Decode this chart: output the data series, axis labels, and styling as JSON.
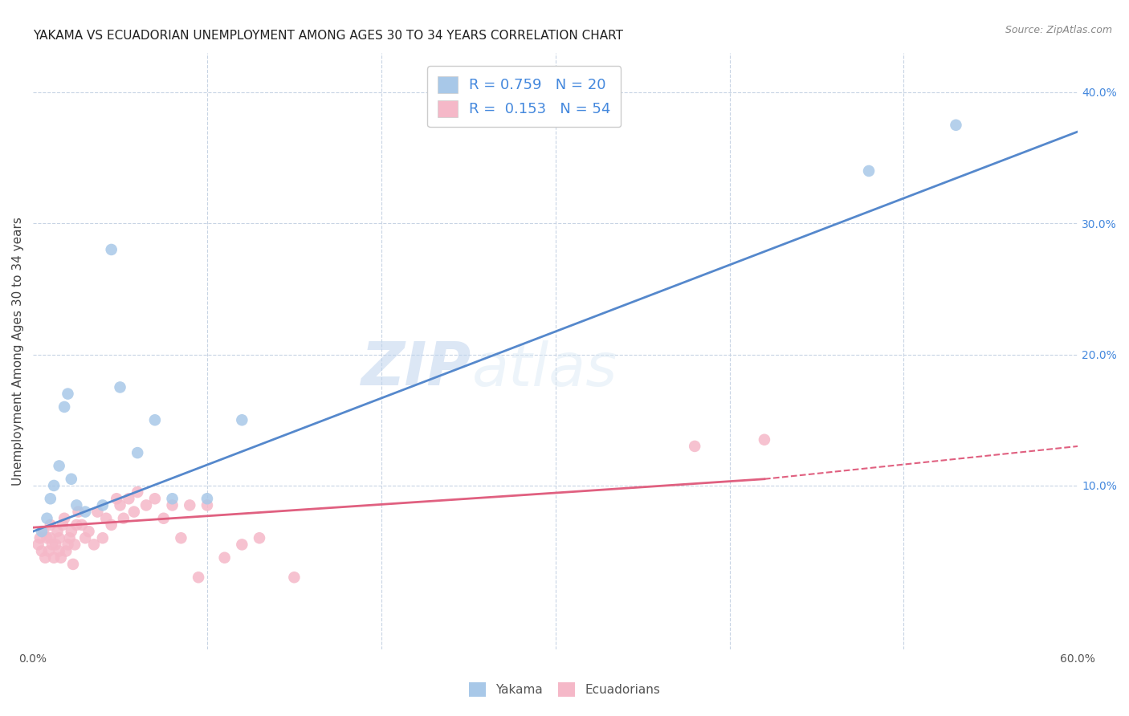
{
  "title": "YAKAMA VS ECUADORIAN UNEMPLOYMENT AMONG AGES 30 TO 34 YEARS CORRELATION CHART",
  "source": "Source: ZipAtlas.com",
  "ylabel": "Unemployment Among Ages 30 to 34 years",
  "xlim": [
    0.0,
    0.6
  ],
  "ylim": [
    -0.025,
    0.43
  ],
  "xticks": [
    0.0,
    0.6
  ],
  "xticklabels": [
    "0.0%",
    "60.0%"
  ],
  "yticks_right": [
    0.1,
    0.2,
    0.3,
    0.4
  ],
  "yticklabels_right": [
    "10.0%",
    "20.0%",
    "30.0%",
    "40.0%"
  ],
  "yakama_color": "#a8c8e8",
  "ecuadorian_color": "#f5b8c8",
  "yakama_line_color": "#5588cc",
  "ecuadorian_line_color": "#e06080",
  "yakama_R": 0.759,
  "yakama_N": 20,
  "ecuadorian_R": 0.153,
  "ecuadorian_N": 54,
  "legend_text_color": "#4488dd",
  "watermark": "ZIPatlas",
  "background_color": "#ffffff",
  "grid_color": "#c8d4e4",
  "yakama_x": [
    0.005,
    0.008,
    0.01,
    0.012,
    0.015,
    0.018,
    0.02,
    0.022,
    0.025,
    0.03,
    0.04,
    0.045,
    0.05,
    0.06,
    0.07,
    0.08,
    0.1,
    0.12,
    0.48,
    0.53
  ],
  "yakama_y": [
    0.065,
    0.075,
    0.09,
    0.1,
    0.115,
    0.16,
    0.17,
    0.105,
    0.085,
    0.08,
    0.085,
    0.28,
    0.175,
    0.125,
    0.15,
    0.09,
    0.09,
    0.15,
    0.34,
    0.375
  ],
  "ecuadorian_x": [
    0.003,
    0.004,
    0.005,
    0.006,
    0.007,
    0.008,
    0.009,
    0.01,
    0.01,
    0.011,
    0.012,
    0.013,
    0.014,
    0.015,
    0.015,
    0.016,
    0.017,
    0.018,
    0.019,
    0.02,
    0.021,
    0.022,
    0.023,
    0.024,
    0.025,
    0.026,
    0.028,
    0.03,
    0.032,
    0.035,
    0.037,
    0.04,
    0.042,
    0.045,
    0.048,
    0.05,
    0.052,
    0.055,
    0.058,
    0.06,
    0.065,
    0.07,
    0.075,
    0.08,
    0.085,
    0.09,
    0.095,
    0.1,
    0.11,
    0.12,
    0.13,
    0.15,
    0.38,
    0.42
  ],
  "ecuadorian_y": [
    0.055,
    0.06,
    0.05,
    0.065,
    0.045,
    0.06,
    0.05,
    0.06,
    0.07,
    0.055,
    0.045,
    0.055,
    0.065,
    0.05,
    0.06,
    0.045,
    0.07,
    0.075,
    0.05,
    0.055,
    0.06,
    0.065,
    0.04,
    0.055,
    0.07,
    0.08,
    0.07,
    0.06,
    0.065,
    0.055,
    0.08,
    0.06,
    0.075,
    0.07,
    0.09,
    0.085,
    0.075,
    0.09,
    0.08,
    0.095,
    0.085,
    0.09,
    0.075,
    0.085,
    0.06,
    0.085,
    0.03,
    0.085,
    0.045,
    0.055,
    0.06,
    0.03,
    0.13,
    0.135
  ],
  "yakama_line": [
    0.0,
    0.6,
    0.065,
    0.37
  ],
  "ecuadorian_line_solid": [
    0.0,
    0.42,
    0.068,
    0.105
  ],
  "ecuadorian_line_dashed": [
    0.42,
    0.6,
    0.105,
    0.13
  ]
}
